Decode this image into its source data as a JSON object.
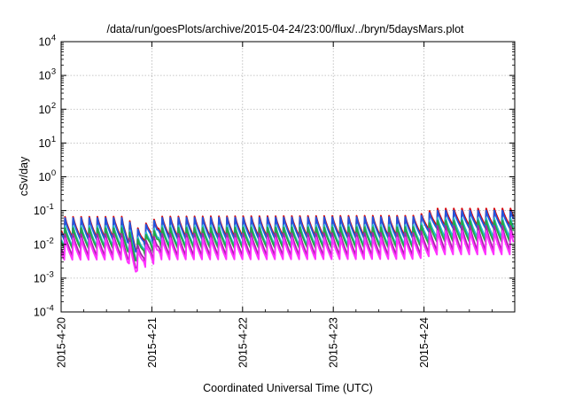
{
  "chart_data": {
    "type": "line",
    "title": "/data/run/goesPlots/archive/2015-04-24/23:00/flux/../bryn/5daysMars.plot",
    "xlabel": "Coordinated Universal Time (UTC)",
    "ylabel": "cSv/day",
    "x_scale": "time",
    "y_scale": "log",
    "xlim": [
      "2015-04-20T00:00",
      "2015-04-25T00:00"
    ],
    "x_ticks": [
      "2015-4-20",
      "2015-4-21",
      "2015-4-22",
      "2015-4-23",
      "2015-4-24"
    ],
    "y_ticks": [
      {
        "base": "10",
        "exp": "4",
        "value": 10000
      },
      {
        "base": "10",
        "exp": "3",
        "value": 1000
      },
      {
        "base": "10",
        "exp": "2",
        "value": 100
      },
      {
        "base": "10",
        "exp": "1",
        "value": 10
      },
      {
        "base": "10",
        "exp": "0",
        "value": 1
      },
      {
        "base": "10",
        "exp": "-1",
        "value": 0.1
      },
      {
        "base": "10",
        "exp": "-2",
        "value": 0.01
      },
      {
        "base": "10",
        "exp": "-3",
        "value": 0.001
      },
      {
        "base": "10",
        "exp": "-4",
        "value": 0.0001
      }
    ],
    "ylim": [
      0.0001,
      10000
    ],
    "grid": true,
    "legend": "none",
    "pattern": "periodic sawtooth, about 11 cycles per day: sharp rise then decay; dip near 2015-04-20 19:00; higher level from 2015-04-24",
    "series": [
      {
        "color": "#dd0000",
        "peak_start": 0.065,
        "trough_start": 0.0155,
        "peak_end": 0.115,
        "trough_end": 0.035
      },
      {
        "color": "#2255dd",
        "peak_start": 0.06,
        "trough_start": 0.0135,
        "peak_end": 0.1,
        "trough_end": 0.03
      },
      {
        "color": "#22bbcc",
        "peak_start": 0.035,
        "trough_start": 0.0085,
        "peak_end": 0.06,
        "trough_end": 0.016
      },
      {
        "color": "#22aa44",
        "peak_start": 0.03,
        "trough_start": 0.0075,
        "peak_end": 0.05,
        "trough_end": 0.012
      },
      {
        "color": "#aa22aa",
        "peak_start": 0.02,
        "trough_start": 0.0045,
        "peak_end": 0.035,
        "trough_end": 0.0065
      },
      {
        "color": "#ff33ff",
        "peak_start": 0.015,
        "trough_start": 0.0035,
        "peak_end": 0.025,
        "trough_end": 0.005
      }
    ]
  }
}
